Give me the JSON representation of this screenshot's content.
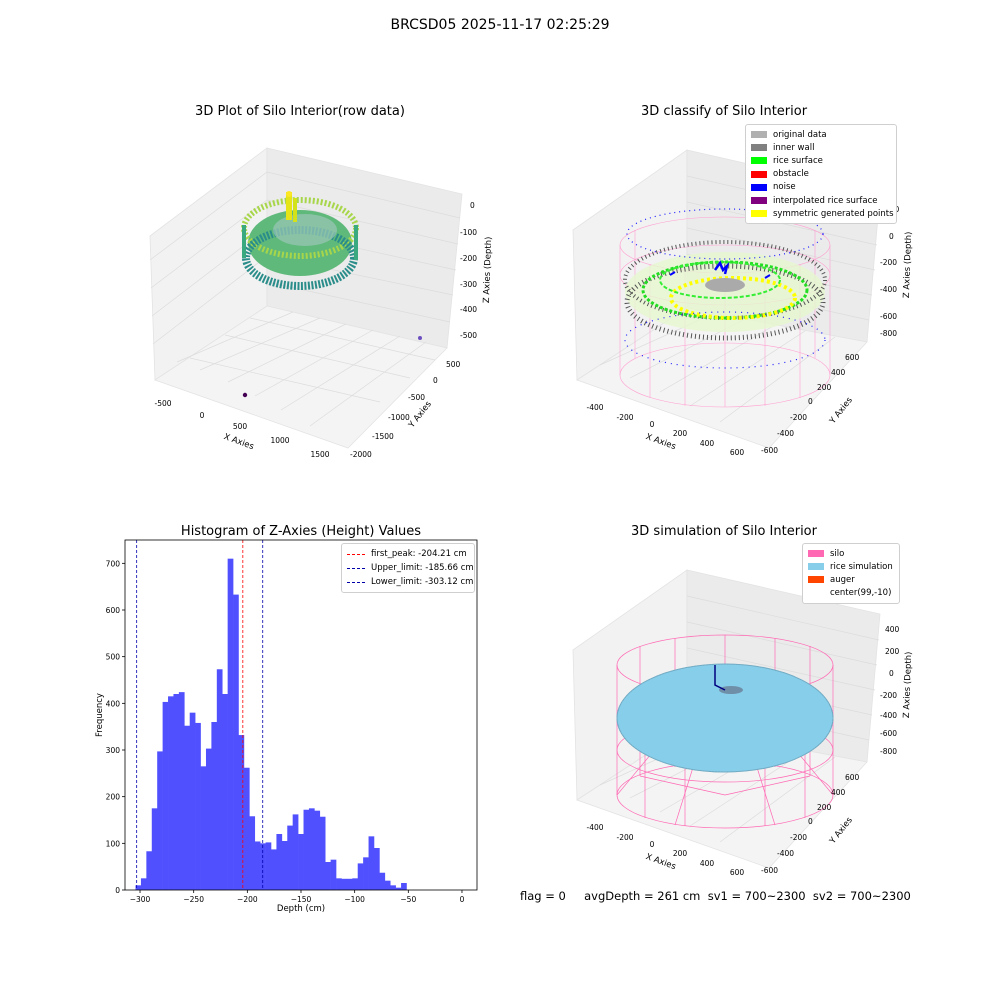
{
  "suptitle": "BRCSD05 2025-11-17 02:25:29",
  "status_text": "flag = 0     avgDepth = 261 cm  sv1 = 700~2300  sv2 = 700~2300",
  "colors": {
    "hist": "#5050ff",
    "peak": "#ff0000",
    "limits": "#0000aa",
    "silo": "#ff69b4",
    "rice": "#87ceeb",
    "auger": "#ff4500"
  },
  "panel_raw": {
    "title": "3D Plot of Silo Interior(row data)",
    "xlabel": "X Axies",
    "ylabel": "Y Axies",
    "zlabel": "Z Axies (Depth)",
    "x_ticks": [
      "-500",
      "0",
      "500",
      "1000",
      "1500"
    ],
    "y_ticks": [
      "500",
      "0",
      "-500",
      "-1000",
      "-1500",
      "-2000"
    ],
    "z_ticks": [
      "0",
      "-100",
      "-200",
      "-300",
      "-400",
      "-500"
    ]
  },
  "panel_classify": {
    "title": "3D classify of Silo Interior",
    "xlabel": "X Axies",
    "ylabel": "Y Axies",
    "zlabel": "Z Axies (Depth)",
    "x_ticks": [
      "-400",
      "-200",
      "0",
      "200",
      "400",
      "600"
    ],
    "y_ticks": [
      "600",
      "400",
      "200",
      "0",
      "-200",
      "-400",
      "-600"
    ],
    "z_ticks": [
      "200",
      "0",
      "-200",
      "-400",
      "-600",
      "-800"
    ],
    "legend": [
      {
        "label": "original data",
        "color": "#b0b0b0"
      },
      {
        "label": "inner wall",
        "color": "#808080"
      },
      {
        "label": "rice surface",
        "color": "#00ff00"
      },
      {
        "label": "obstacle",
        "color": "#ff0000"
      },
      {
        "label": "noise",
        "color": "#0000ff"
      },
      {
        "label": "interpolated rice surface",
        "color": "#800080"
      },
      {
        "label": "symmetric generated points",
        "color": "#ffff00"
      }
    ]
  },
  "panel_sim": {
    "title": "3D simulation of Silo Interior",
    "xlabel": "X Axies",
    "ylabel": "Y Axies",
    "zlabel": "Z Axies (Depth)",
    "x_ticks": [
      "-400",
      "-200",
      "0",
      "200",
      "400",
      "600"
    ],
    "y_ticks": [
      "600",
      "400",
      "200",
      "0",
      "-200",
      "-400",
      "-600"
    ],
    "z_ticks": [
      "400",
      "200",
      "0",
      "-200",
      "-400",
      "-600",
      "-800"
    ],
    "legend": [
      {
        "label": "silo",
        "color": "#ff69b4"
      },
      {
        "label": "rice simulation",
        "color": "#87ceeb"
      },
      {
        "label": "auger",
        "color": "#ff4500"
      },
      {
        "label": "center(99,-10)",
        "color": "#ffffff"
      }
    ]
  },
  "chart_data": {
    "type": "bar",
    "title": "Histogram of Z-Axies (Height) Values",
    "xlabel": "Depth (cm)",
    "ylabel": "Frequency",
    "xlim": [
      -314,
      14
    ],
    "ylim": [
      0,
      750
    ],
    "x_ticks": [
      -300,
      -250,
      -200,
      -150,
      -100,
      -50,
      0
    ],
    "y_ticks": [
      0,
      100,
      200,
      300,
      400,
      500,
      600,
      700
    ],
    "bin_width": 5.05,
    "bin_start": -304.2,
    "values": [
      10,
      25,
      83,
      175,
      297,
      403,
      415,
      420,
      424,
      352,
      380,
      358,
      265,
      303,
      360,
      473,
      420,
      710,
      633,
      332,
      262,
      158,
      104,
      100,
      102,
      87,
      120,
      105,
      138,
      162,
      120,
      172,
      175,
      170,
      157,
      60,
      65,
      25,
      24,
      24,
      25,
      57,
      70,
      115,
      90,
      37,
      20,
      10,
      5,
      15
    ],
    "vlines": [
      {
        "label": "first_peak: -204.21 cm",
        "x": -204.21,
        "color": "#ff0000"
      },
      {
        "label": "Upper_limit: -185.66 cm",
        "x": -185.66,
        "color": "#0000aa"
      },
      {
        "label": "Lower_limit: -303.12 cm",
        "x": -303.12,
        "color": "#0000aa"
      }
    ]
  }
}
